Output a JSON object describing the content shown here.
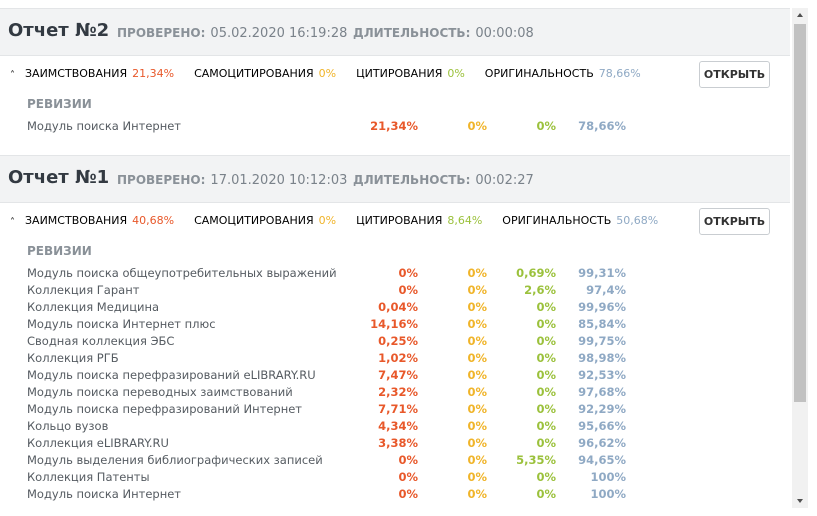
{
  "reports": [
    {
      "title": "Отчет №2",
      "checked_label": "ПРОВЕРЕНО:",
      "checked_value": "05.02.2020 16:19:28",
      "duration_label": "ДЛИТЕЛЬНОСТЬ:",
      "duration_value": "00:00:08",
      "stats": [
        {
          "label": "ЗАИМСТВОВАНИЯ",
          "value": "21,34%"
        },
        {
          "label": "САМОЦИТИРОВАНИЯ",
          "value": "0%"
        },
        {
          "label": "ЦИТИРОВАНИЯ",
          "value": "0%"
        },
        {
          "label": "ОРИГИНАЛЬНОСТЬ",
          "value": "78,66%"
        }
      ],
      "button": "ОТКРЫТЬ",
      "revisions_label": "РЕВИЗИИ",
      "rows": [
        [
          "Модуль поиска Интернет",
          "21,34%",
          "0%",
          "0%",
          "78,66%"
        ]
      ]
    },
    {
      "title": "Отчет №1",
      "checked_label": "ПРОВЕРЕНО:",
      "checked_value": "17.01.2020 10:12:03",
      "duration_label": "ДЛИТЕЛЬНОСТЬ:",
      "duration_value": "00:02:27",
      "stats": [
        {
          "label": "ЗАИМСТВОВАНИЯ",
          "value": "40,68%"
        },
        {
          "label": "САМОЦИТИРОВАНИЯ",
          "value": "0%"
        },
        {
          "label": "ЦИТИРОВАНИЯ",
          "value": "8,64%"
        },
        {
          "label": "ОРИГИНАЛЬНОСТЬ",
          "value": "50,68%"
        }
      ],
      "button": "ОТКРЫТЬ",
      "revisions_label": "РЕВИЗИИ",
      "rows": [
        [
          "Модуль поиска общеупотребительных выражений",
          "0%",
          "0%",
          "0,69%",
          "99,31%"
        ],
        [
          "Коллекция Гарант",
          "0%",
          "0%",
          "2,6%",
          "97,4%"
        ],
        [
          "Коллекция Медицина",
          "0,04%",
          "0%",
          "0%",
          "99,96%"
        ],
        [
          "Модуль поиска Интернет плюс",
          "14,16%",
          "0%",
          "0%",
          "85,84%"
        ],
        [
          "Сводная коллекция ЭБС",
          "0,25%",
          "0%",
          "0%",
          "99,75%"
        ],
        [
          "Коллекция РГБ",
          "1,02%",
          "0%",
          "0%",
          "98,98%"
        ],
        [
          "Модуль поиска перефразирований eLIBRARY.RU",
          "7,47%",
          "0%",
          "0%",
          "92,53%"
        ],
        [
          "Модуль поиска переводных заимствований",
          "2,32%",
          "0%",
          "0%",
          "97,68%"
        ],
        [
          "Модуль поиска перефразирований Интернет",
          "7,71%",
          "0%",
          "0%",
          "92,29%"
        ],
        [
          "Кольцо вузов",
          "4,34%",
          "0%",
          "0%",
          "95,66%"
        ],
        [
          "Коллекция eLIBRARY.RU",
          "3,38%",
          "0%",
          "0%",
          "96,62%"
        ],
        [
          "Модуль выделения библиографических записей",
          "0%",
          "0%",
          "5,35%",
          "94,65%"
        ],
        [
          "Коллекция Патенты",
          "0%",
          "0%",
          "0%",
          "100%"
        ],
        [
          "Модуль поиска Интернет",
          "0%",
          "0%",
          "0%",
          "100%"
        ]
      ]
    }
  ]
}
